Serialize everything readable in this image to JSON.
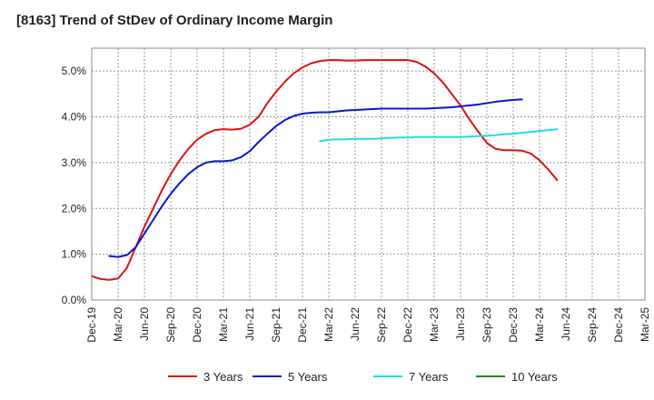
{
  "chart_data": {
    "type": "line",
    "title": "[8163]  Trend of StDev of Ordinary Income Margin",
    "xlabel": "",
    "ylabel": "",
    "ylim": [
      0,
      5.5
    ],
    "y_ticks": [
      0,
      1,
      2,
      3,
      4,
      5
    ],
    "y_tick_labels": [
      "0.0%",
      "1.0%",
      "2.0%",
      "3.0%",
      "4.0%",
      "5.0%"
    ],
    "x_tick_labels": [
      "Dec-19",
      "Mar-20",
      "Jun-20",
      "Sep-20",
      "Dec-20",
      "Mar-21",
      "Jun-21",
      "Sep-21",
      "Dec-21",
      "Mar-22",
      "Jun-22",
      "Sep-22",
      "Dec-22",
      "Mar-23",
      "Jun-23",
      "Sep-23",
      "Dec-23",
      "Mar-24",
      "Jun-24",
      "Sep-24",
      "Dec-24",
      "Mar-25"
    ],
    "grid": true,
    "legend_position": "bottom",
    "series": [
      {
        "name": "3 Years",
        "color": "#dd1111",
        "start_index": 0,
        "values": [
          0.52,
          0.46,
          0.44,
          0.47,
          0.7,
          1.15,
          1.6,
          2.0,
          2.4,
          2.75,
          3.05,
          3.3,
          3.5,
          3.63,
          3.71,
          3.73,
          3.72,
          3.74,
          3.83,
          4.0,
          4.3,
          4.55,
          4.77,
          4.95,
          5.08,
          5.17,
          5.22,
          5.24,
          5.24,
          5.23,
          5.23,
          5.24,
          5.24,
          5.24,
          5.24,
          5.24,
          5.24,
          5.2,
          5.1,
          4.95,
          4.75,
          4.5,
          4.25,
          3.95,
          3.68,
          3.43,
          3.3,
          3.27,
          3.27,
          3.26,
          3.2,
          3.05,
          2.85,
          2.62
        ]
      },
      {
        "name": "5 Years",
        "color": "#0a18cc",
        "start_index": 2,
        "values": [
          0.96,
          0.94,
          0.98,
          1.15,
          1.45,
          1.75,
          2.05,
          2.32,
          2.55,
          2.75,
          2.9,
          3.0,
          3.03,
          3.03,
          3.05,
          3.12,
          3.25,
          3.45,
          3.63,
          3.8,
          3.93,
          4.02,
          4.07,
          4.09,
          4.1,
          4.1,
          4.12,
          4.14,
          4.15,
          4.16,
          4.17,
          4.18,
          4.18,
          4.18,
          4.18,
          4.18,
          4.18,
          4.19,
          4.2,
          4.21,
          4.23,
          4.25,
          4.27,
          4.3,
          4.33,
          4.35,
          4.37,
          4.38
        ]
      },
      {
        "name": "7 Years",
        "color": "#22dddd",
        "start_index": 26,
        "values": [
          3.47,
          3.5,
          3.51,
          3.51,
          3.52,
          3.52,
          3.52,
          3.53,
          3.54,
          3.55,
          3.55,
          3.56,
          3.56,
          3.56,
          3.56,
          3.56,
          3.56,
          3.57,
          3.58,
          3.59,
          3.6,
          3.62,
          3.63,
          3.65,
          3.67,
          3.69,
          3.71,
          3.73
        ]
      },
      {
        "name": "10 Years",
        "color": "#148c14",
        "start_index": 0,
        "values": []
      }
    ]
  }
}
